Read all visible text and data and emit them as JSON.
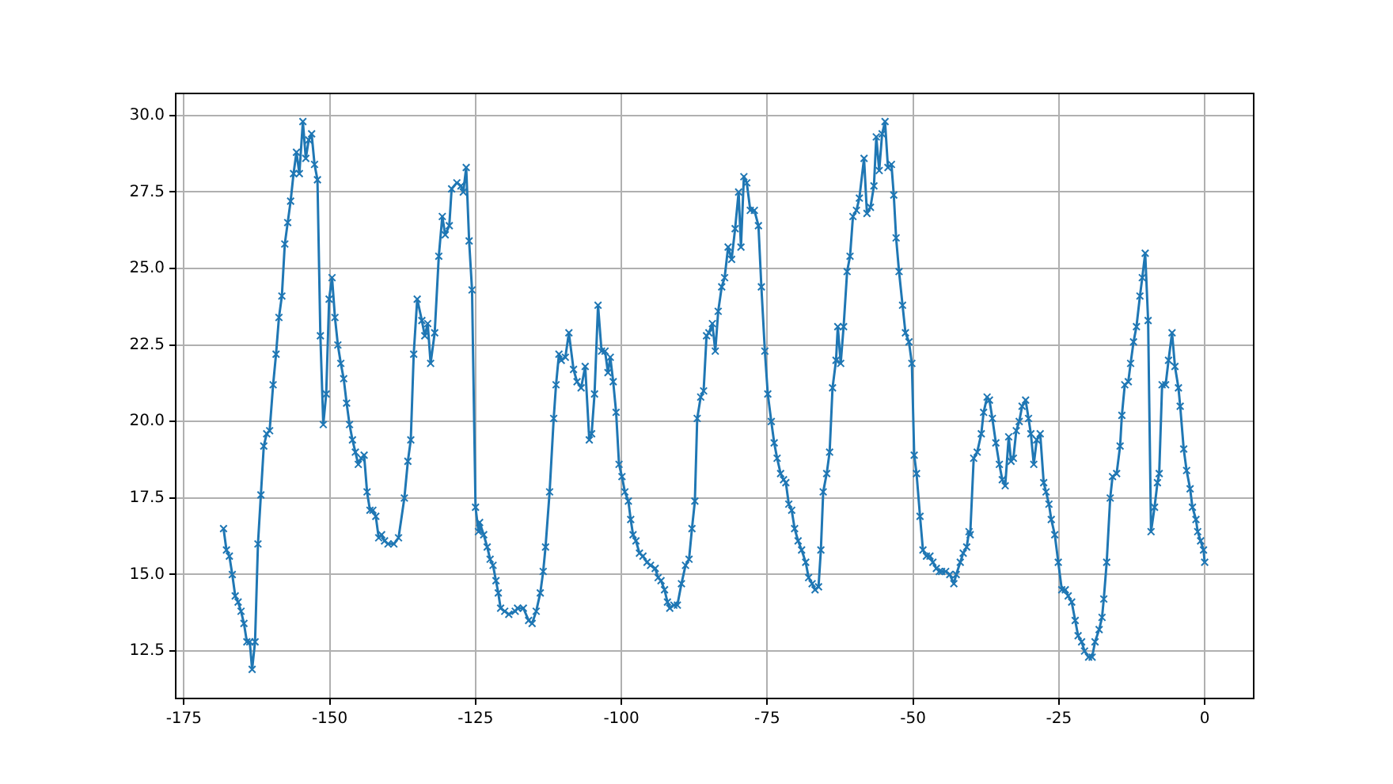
{
  "chart_data": {
    "type": "line",
    "grid": true,
    "marker": "cross",
    "line_style": "solid",
    "xlim": [
      -176.4,
      8.4
    ],
    "xticks": [
      -175,
      -150,
      -125,
      -100,
      -75,
      -50,
      -25,
      0
    ],
    "ylim": [
      10.95,
      30.72
    ],
    "yticks": [
      12.5,
      {
        "value": 15,
        "label": "15.0"
      },
      17.5,
      {
        "value": 20,
        "label": "20.0"
      },
      22.5,
      {
        "value": 25,
        "label": "25.0"
      },
      27.5,
      {
        "value": 30,
        "label": "30.0"
      }
    ],
    "series": [
      {
        "color": "#1f77b4",
        "x": [
          -168.2,
          -167.7,
          -167.2,
          -166.7,
          -166.2,
          -165.7,
          -165.2,
          -164.7,
          -164.2,
          -163.7,
          -163.3,
          -162.8,
          -162.3,
          -161.8,
          -161.3,
          -160.8,
          -160.3,
          -159.7,
          -159.2,
          -158.7,
          -158.2,
          -157.7,
          -157.2,
          -156.7,
          -156.2,
          -155.7,
          -155.2,
          -154.6,
          -154.1,
          -153.6,
          -153.1,
          -152.6,
          -152.1,
          -151.6,
          -151.1,
          -150.6,
          -150.1,
          -149.6,
          -149.1,
          -148.6,
          -148.1,
          -147.6,
          -147.1,
          -146.6,
          -146.1,
          -145.6,
          -145.1,
          -144.6,
          -144.1,
          -143.6,
          -143.1,
          -142.6,
          -142.1,
          -141.6,
          -141.1,
          -140.6,
          -140,
          -139,
          -138.2,
          -137.2,
          -136.6,
          -136.1,
          -135.6,
          -135,
          -134.2,
          -133.7,
          -133.2,
          -132.7,
          -132,
          -131.3,
          -130.7,
          -130.2,
          -129.5,
          -129.1,
          -128.2,
          -127.5,
          -127.1,
          -126.6,
          -126.1,
          -125.6,
          -125,
          -124.5,
          -124.3,
          -123.6,
          -123,
          -122.5,
          -122,
          -121.5,
          -121.1,
          -120.7,
          -120,
          -119.3,
          -118.2,
          -117.8,
          -116.8,
          -115.9,
          -115.3,
          -114.6,
          -113.9,
          -113.4,
          -113,
          -112.3,
          -111.6,
          -111.2,
          -110.7,
          -110.3,
          -109.6,
          -109,
          -108.2,
          -107.6,
          -106.9,
          -106.2,
          -105.5,
          -105.1,
          -104.6,
          -104,
          -103.4,
          -102.8,
          -102.3,
          -101.9,
          -101.4,
          -100.9,
          -100.4,
          -99.9,
          -99.4,
          -98.8,
          -98.4,
          -98,
          -97.5,
          -96.9,
          -96.3,
          -95.6,
          -95,
          -94.2,
          -93.7,
          -93.2,
          -92.6,
          -92.1,
          -91.7,
          -91,
          -90.4,
          -89.7,
          -89,
          -88.4,
          -87.9,
          -87.4,
          -87,
          -86.4,
          -85.9,
          -85.4,
          -85,
          -84.4,
          -83.9,
          -83.4,
          -82.8,
          -82.3,
          -81.7,
          -81.1,
          -80.5,
          -79.9,
          -79.5,
          -79,
          -78.5,
          -77.9,
          -77.2,
          -76.5,
          -76,
          -75.4,
          -74.9,
          -74.3,
          -73.8,
          -73.3,
          -72.7,
          -72.2,
          -71.8,
          -71.3,
          -70.8,
          -70.3,
          -69.7,
          -69.1,
          -68.4,
          -67.9,
          -67.3,
          -66.8,
          -66.2,
          -65.8,
          -65.4,
          -64.8,
          -64.3,
          -63.8,
          -63.2,
          -62.9,
          -62.4,
          -61.9,
          -61.3,
          -60.8,
          -60.3,
          -59.7,
          -59.2,
          -58.4,
          -57.9,
          -57.3,
          -56.7,
          -56.3,
          -55.8,
          -55.3,
          -54.8,
          -54.3,
          -53.7,
          -53.3,
          -52.9,
          -52.4,
          -51.8,
          -51.3,
          -50.7,
          -50.2,
          -49.8,
          -49.4,
          -48.8,
          -48.3,
          -47.7,
          -47.1,
          -46.6,
          -46,
          -45.5,
          -45.1,
          -44.4,
          -43.7,
          -43,
          -42.6,
          -41.9,
          -41.4,
          -40.8,
          -40.4,
          -40.2,
          -39.6,
          -39,
          -38.3,
          -37.9,
          -37.3,
          -36.9,
          -36.4,
          -35.8,
          -35.2,
          -34.7,
          -34.2,
          -33.6,
          -33.2,
          -32.8,
          -32.3,
          -31.8,
          -31.3,
          -30.7,
          -30.2,
          -29.8,
          -29.3,
          -28.8,
          -28.2,
          -27.6,
          -27.2,
          -26.7,
          -26.3,
          -25.7,
          -25.1,
          -24.5,
          -23.9,
          -23.4,
          -22.8,
          -22.2,
          -21.7,
          -21.1,
          -20.6,
          -19.9,
          -19.3,
          -18.8,
          -18.1,
          -17.6,
          -17.3,
          -16.8,
          -16.2,
          -15.8,
          -15.1,
          -14.5,
          -14.2,
          -13.7,
          -13.1,
          -12.7,
          -12.2,
          -11.7,
          -11.1,
          -10.7,
          -10.2,
          -9.7,
          -9.2,
          -8.6,
          -8.1,
          -7.8,
          -7.3,
          -6.7,
          -6.2,
          -5.6,
          -5.1,
          -4.5,
          -4.2,
          -3.6,
          -3.1,
          -2.5,
          -2.1,
          -1.5,
          -1.2,
          -0.7,
          -0.2,
          0
        ],
        "values": [
          16.5,
          15.8,
          15.6,
          15.0,
          14.3,
          14.1,
          13.8,
          13.4,
          12.8,
          12.8,
          11.9,
          12.8,
          16.0,
          17.6,
          19.2,
          19.6,
          19.7,
          21.2,
          22.2,
          23.4,
          24.1,
          25.8,
          26.5,
          27.2,
          28.1,
          28.8,
          28.1,
          29.8,
          28.6,
          29.2,
          29.4,
          28.4,
          27.9,
          22.8,
          19.9,
          20.9,
          24.0,
          24.7,
          23.4,
          22.5,
          21.9,
          21.4,
          20.6,
          19.9,
          19.4,
          19.0,
          18.6,
          18.8,
          18.9,
          17.7,
          17.1,
          17.1,
          16.9,
          16.2,
          16.3,
          16.1,
          16.0,
          16.0,
          16.2,
          17.5,
          18.7,
          19.4,
          22.2,
          24.0,
          23.3,
          22.8,
          23.2,
          21.9,
          22.9,
          25.4,
          26.7,
          26.1,
          26.4,
          27.6,
          27.8,
          27.7,
          27.5,
          28.3,
          25.9,
          24.3,
          17.2,
          16.4,
          16.7,
          16.3,
          15.9,
          15.5,
          15.3,
          14.8,
          14.4,
          13.9,
          13.8,
          13.7,
          13.8,
          13.9,
          13.9,
          13.5,
          13.4,
          13.8,
          14.4,
          15.1,
          15.9,
          17.7,
          20.1,
          21.2,
          22.2,
          22.0,
          22.1,
          22.9,
          21.7,
          21.3,
          21.1,
          21.8,
          19.4,
          19.6,
          20.9,
          23.8,
          22.3,
          22.3,
          21.6,
          22.1,
          21.3,
          20.3,
          18.6,
          18.2,
          17.7,
          17.4,
          16.8,
          16.3,
          16.1,
          15.7,
          15.6,
          15.4,
          15.3,
          15.2,
          14.9,
          14.8,
          14.5,
          14.1,
          13.9,
          14.0,
          14.0,
          14.7,
          15.3,
          15.5,
          16.5,
          17.4,
          20.1,
          20.8,
          21.0,
          22.8,
          22.9,
          23.2,
          22.3,
          23.6,
          24.4,
          24.7,
          25.7,
          25.3,
          26.3,
          27.5,
          25.7,
          28.0,
          27.8,
          26.9,
          26.9,
          26.4,
          24.4,
          22.3,
          20.9,
          20.0,
          19.3,
          18.8,
          18.3,
          18.1,
          18.0,
          17.3,
          17.1,
          16.5,
          16.1,
          15.8,
          15.4,
          14.9,
          14.7,
          14.5,
          14.6,
          15.8,
          17.7,
          18.3,
          19.0,
          21.1,
          22.0,
          23.1,
          21.9,
          23.1,
          24.9,
          25.4,
          26.7,
          26.9,
          27.3,
          28.6,
          26.8,
          27.0,
          27.7,
          29.3,
          28.2,
          29.4,
          29.8,
          28.3,
          28.4,
          27.4,
          26.0,
          24.9,
          23.8,
          22.9,
          22.6,
          21.9,
          18.9,
          18.3,
          16.9,
          15.8,
          15.6,
          15.6,
          15.4,
          15.2,
          15.1,
          15.1,
          15.1,
          15.0,
          14.7,
          15.0,
          15.4,
          15.7,
          15.9,
          16.4,
          16.3,
          18.8,
          19.0,
          19.6,
          20.3,
          20.8,
          20.7,
          20.1,
          19.3,
          18.6,
          18.1,
          17.9,
          19.5,
          18.7,
          18.8,
          19.7,
          20.0,
          20.5,
          20.7,
          20.1,
          19.6,
          18.6,
          19.4,
          19.6,
          18.0,
          17.7,
          17.3,
          16.8,
          16.3,
          15.4,
          14.5,
          14.5,
          14.3,
          14.1,
          13.5,
          13.0,
          12.8,
          12.5,
          12.3,
          12.3,
          12.8,
          13.2,
          13.6,
          14.2,
          15.4,
          17.5,
          18.2,
          18.3,
          19.2,
          20.2,
          21.2,
          21.3,
          21.9,
          22.6,
          23.1,
          24.1,
          24.7,
          25.5,
          23.3,
          16.4,
          17.2,
          18.0,
          18.3,
          21.2,
          21.2,
          22.0,
          22.9,
          21.8,
          21.1,
          20.5,
          19.1,
          18.4,
          17.8,
          17.2,
          16.8,
          16.4,
          16.1,
          15.8,
          15.4
        ]
      }
    ]
  }
}
